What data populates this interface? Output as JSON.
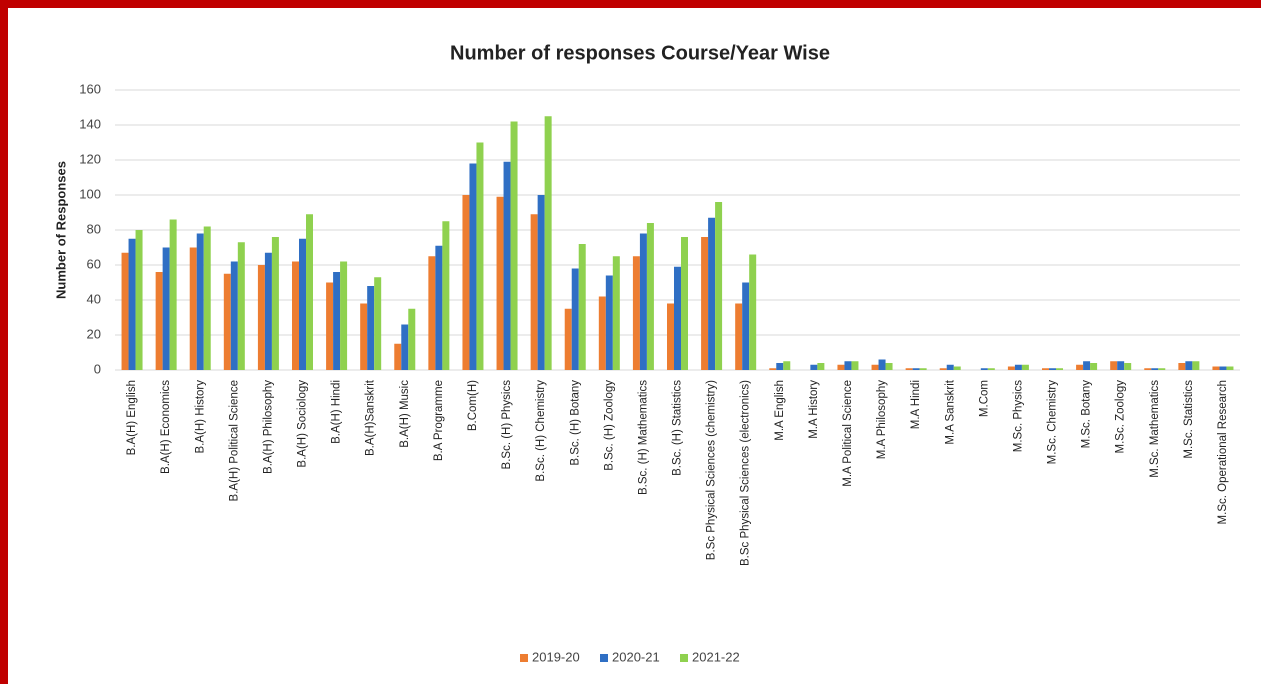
{
  "chart_data": {
    "type": "bar",
    "title": "Number of responses Course/Year Wise",
    "y_label": "Number of Responses",
    "categories": [
      "B.A(H) English",
      "B.A(H) Economics",
      "B.A(H) History",
      "B.A(H) Political Science",
      "B.A(H) Philosophy",
      "B.A(H) Sociology",
      "B.A(H) Hindi",
      "B.A(H)Sanskrit",
      "B.A(H) Music",
      "B.A Programme",
      "B.Com(H)",
      "B.Sc. (H) Physics",
      "B.Sc. (H) Chemistry",
      "B.Sc. (H) Botany",
      "B.Sc. (H) Zoology",
      "B.Sc. (H) Mathematics",
      "B.Sc. (H) Statistics",
      "B.Sc Physical Sciences (chemistry)",
      "B.Sc Physical Sciences (electronics)",
      "M.A English",
      "M.A History",
      "M.A Political Science",
      "M.A Philosophy",
      "M.A  Hindi",
      "M.A Sanskrit",
      "M.Com",
      "M.Sc. Physics",
      "M.Sc. Chemistry",
      "M.Sc. Botany",
      "M.Sc. Zoology",
      "M.Sc. Mathematics",
      "M.Sc. Statistics",
      "M.Sc. Operational Research"
    ],
    "series": [
      {
        "name": "2019-20",
        "color": "#ed7d31",
        "values": [
          67,
          56,
          70,
          55,
          60,
          62,
          50,
          38,
          15,
          65,
          100,
          99,
          89,
          35,
          42,
          65,
          38,
          76,
          38,
          1,
          0,
          3,
          3,
          1,
          1,
          0,
          2,
          1,
          3,
          5,
          1,
          4,
          2
        ]
      },
      {
        "name": "2020-21",
        "color": "#2f6fc4",
        "values": [
          75,
          70,
          78,
          62,
          67,
          75,
          56,
          48,
          26,
          71,
          118,
          119,
          100,
          58,
          54,
          78,
          59,
          87,
          50,
          4,
          3,
          5,
          6,
          1,
          3,
          1,
          3,
          1,
          5,
          5,
          1,
          5,
          2
        ]
      },
      {
        "name": "2021-22",
        "color": "#8fd14f",
        "values": [
          80,
          86,
          82,
          73,
          76,
          89,
          62,
          53,
          35,
          85,
          130,
          142,
          145,
          72,
          65,
          84,
          76,
          96,
          66,
          5,
          4,
          5,
          4,
          1,
          2,
          1,
          3,
          1,
          4,
          4,
          1,
          5,
          2
        ]
      }
    ],
    "ylim": [
      0,
      160
    ],
    "yticks": [
      0,
      20,
      40,
      60,
      80,
      100,
      120,
      140,
      160
    ],
    "grid": true,
    "legend": "bottom"
  }
}
